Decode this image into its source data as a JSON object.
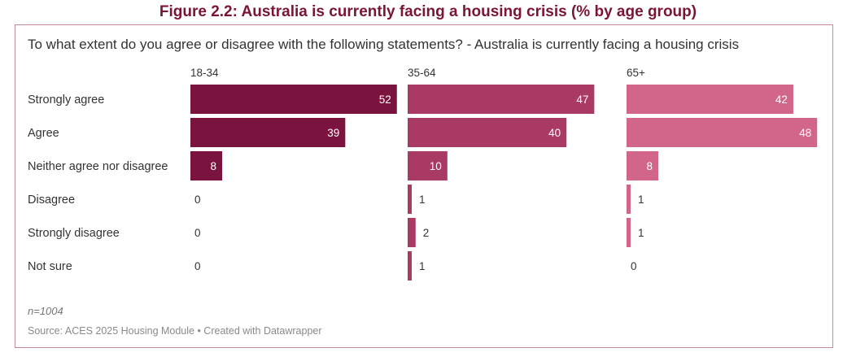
{
  "figure_title": "Figure 2.2: Australia is currently facing a housing crisis (% by age group)",
  "question": "To what extent do you agree or disagree with the following statements? - Australia is currently facing a housing crisis",
  "footer": {
    "note": "n=1004",
    "source": "Source: ACES 2025 Housing Module • Created with Datawrapper"
  },
  "colors": {
    "title": "#7b1538",
    "series": [
      "#7a133e",
      "#a93a63",
      "#d2658a"
    ]
  },
  "chart_data": {
    "type": "bar",
    "orientation": "horizontal",
    "title": "To what extent do you agree or disagree with the following statements? - Australia is currently facing a housing crisis",
    "categories": [
      "Strongly agree",
      "Agree",
      "Neither agree nor disagree",
      "Disagree",
      "Strongly disagree",
      "Not sure"
    ],
    "series": [
      {
        "name": "18-34",
        "values": [
          52,
          39,
          8,
          0,
          0,
          0
        ]
      },
      {
        "name": "35-64",
        "values": [
          47,
          40,
          10,
          1,
          2,
          1
        ]
      },
      {
        "name": "65+",
        "values": [
          42,
          48,
          8,
          1,
          1,
          0
        ]
      }
    ],
    "xlim": [
      0,
      55
    ],
    "unit": "%"
  }
}
